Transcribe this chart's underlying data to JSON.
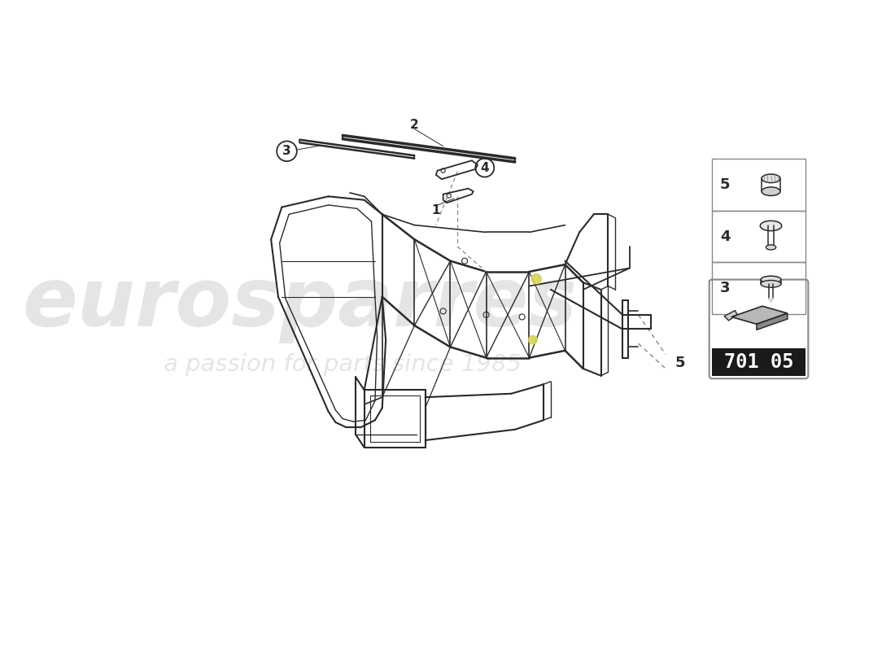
{
  "background_color": "#ffffff",
  "watermark_text1": "eurosparres",
  "watermark_text2": "a passion for parts since 1985",
  "watermark_color": "#cccccc",
  "part_number_box": "701 05",
  "line_color": "#2a2a2a",
  "thin_line": "#555555",
  "highlight_color": "#d4d45a",
  "callout_line_color": "#333333",
  "panel_border": "#aaaaaa",
  "frame_main": "#333333",
  "frame_detail": "#555555"
}
